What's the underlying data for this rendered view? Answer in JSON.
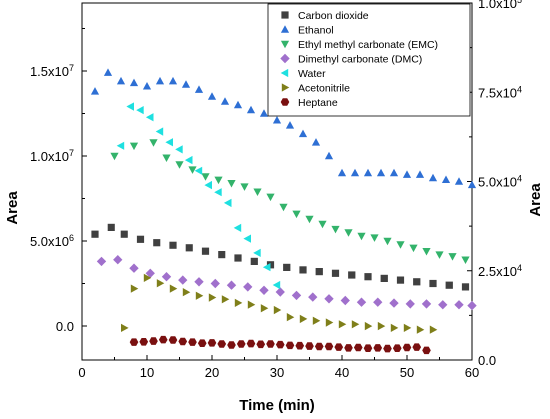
{
  "chart_data": {
    "type": "scatter",
    "xlabel": "Time (min)",
    "ylabel_left": "Area",
    "ylabel_right": "Area",
    "xlim": [
      0,
      60
    ],
    "xticks": [
      0,
      10,
      20,
      30,
      40,
      50,
      60
    ],
    "xtick_labels": [
      "0",
      "10",
      "20",
      "30",
      "40",
      "50",
      "60"
    ],
    "ylim_left": [
      -2000000,
      19000000
    ],
    "yticks_left": [
      0,
      5000000,
      10000000,
      15000000
    ],
    "ytick_labels_left": [
      "0.0",
      "5.0x10^6",
      "1.0x10^7",
      "1.5x10^7"
    ],
    "ylim_right": [
      0,
      100000
    ],
    "yticks_right": [
      0,
      25000,
      50000,
      75000,
      100000
    ],
    "ytick_labels_right": [
      "0.0",
      "2.5x10^4",
      "5.0x10^4",
      "7.5x10^4",
      "1.0x10^5"
    ],
    "grid": false,
    "legend_position": "top-right",
    "series": [
      {
        "name": "Carbon dioxide",
        "marker": "square",
        "color": "#404040",
        "axis": "left",
        "x": [
          2,
          4.5,
          6.5,
          9,
          11.5,
          14,
          16.5,
          19,
          21.5,
          24,
          26.5,
          29,
          31.5,
          34,
          36.5,
          39,
          41.5,
          44,
          46.5,
          49,
          51.5,
          54,
          56.5,
          59
        ],
        "y": [
          5400000,
          5800000,
          5400000,
          5100000,
          4900000,
          4750000,
          4600000,
          4400000,
          4200000,
          4000000,
          3800000,
          3600000,
          3450000,
          3300000,
          3200000,
          3100000,
          3000000,
          2900000,
          2800000,
          2700000,
          2600000,
          2500000,
          2400000,
          2300000
        ]
      },
      {
        "name": "Ethanol",
        "marker": "triangle-up",
        "color": "#2e6fd4",
        "axis": "left",
        "x": [
          2,
          4,
          6,
          8,
          10,
          12,
          14,
          16,
          18,
          20,
          22,
          24,
          26,
          28,
          30,
          32,
          34,
          36,
          38,
          40,
          42,
          44,
          46,
          48,
          50,
          52,
          54,
          56,
          58,
          60
        ],
        "y": [
          13800000,
          14900000,
          14400000,
          14300000,
          14100000,
          14400000,
          14400000,
          14200000,
          13900000,
          13500000,
          13200000,
          13000000,
          12700000,
          12500000,
          12100000,
          11800000,
          11300000,
          10800000,
          10000000,
          9000000,
          9000000,
          9000000,
          9000000,
          9000000,
          8900000,
          8900000,
          8700000,
          8600000,
          8500000,
          8300000
        ]
      },
      {
        "name": "Ethyl methyl carbonate (EMC)",
        "marker": "triangle-down",
        "color": "#33b36b",
        "axis": "left",
        "x": [
          5,
          8,
          11,
          13,
          15,
          17,
          19,
          21,
          23,
          25,
          27,
          29,
          31,
          33,
          35,
          37,
          39,
          41,
          43,
          45,
          47,
          49,
          51,
          53,
          55,
          57,
          59
        ],
        "y": [
          10000000,
          10600000,
          10800000,
          9900000,
          9500000,
          9200000,
          8800000,
          8600000,
          8400000,
          8200000,
          7900000,
          7600000,
          7000000,
          6600000,
          6300000,
          6000000,
          5700000,
          5500000,
          5300000,
          5200000,
          5000000,
          4800000,
          4600000,
          4400000,
          4200000,
          4100000,
          3900000
        ]
      },
      {
        "name": "Dimethyl carbonate (DMC)",
        "marker": "diamond",
        "color": "#a070cc",
        "axis": "left",
        "x": [
          3,
          5.5,
          8,
          10.5,
          13,
          15.5,
          18,
          20.5,
          23,
          25.5,
          28,
          30.5,
          33,
          35.5,
          38,
          40.5,
          43,
          45.5,
          48,
          50.5,
          53,
          55.5,
          58,
          60
        ],
        "y": [
          3800000,
          3900000,
          3400000,
          3100000,
          2900000,
          2700000,
          2600000,
          2500000,
          2400000,
          2300000,
          2100000,
          2000000,
          1800000,
          1700000,
          1600000,
          1500000,
          1400000,
          1400000,
          1350000,
          1300000,
          1300000,
          1250000,
          1250000,
          1200000
        ]
      },
      {
        "name": "Water",
        "marker": "triangle-left",
        "color": "#1ee0e0",
        "axis": "right",
        "x": [
          6,
          7.5,
          9,
          10.5,
          12,
          13.5,
          15,
          16.5,
          18,
          19.5,
          21,
          22.5,
          24,
          25.5,
          27,
          28.5,
          30
        ],
        "y": [
          60000,
          71000,
          70000,
          68000,
          64000,
          61000,
          59000,
          56000,
          53000,
          49000,
          47000,
          44000,
          37000,
          34000,
          30000,
          26000,
          21000
        ]
      },
      {
        "name": "Acetonitrile",
        "marker": "triangle-right",
        "color": "#7f7f1a",
        "axis": "right",
        "x": [
          6.5,
          8,
          10,
          12,
          14,
          16,
          18,
          20,
          22,
          24,
          26,
          28,
          30,
          32,
          34,
          36,
          38,
          40,
          42,
          44,
          46,
          48,
          50,
          52,
          54
        ],
        "y": [
          9000,
          20000,
          23000,
          21500,
          20000,
          19000,
          18000,
          17500,
          17000,
          16000,
          15500,
          14500,
          14000,
          12000,
          11500,
          11000,
          10500,
          10000,
          10000,
          9500,
          9500,
          9000,
          9000,
          8500,
          8500
        ]
      },
      {
        "name": "Heptane",
        "marker": "hexagon",
        "color": "#7a1010",
        "axis": "right",
        "x": [
          8,
          9.5,
          11,
          12.5,
          14,
          15.5,
          17,
          18.5,
          20,
          21.5,
          23,
          24.5,
          26,
          27.5,
          29,
          30.5,
          32,
          33.5,
          35,
          36.5,
          38,
          39.5,
          41,
          42.5,
          44,
          45.5,
          47,
          48.5,
          50,
          51.5,
          53
        ],
        "y": [
          5000,
          5100,
          5300,
          5700,
          5600,
          5200,
          5000,
          4700,
          4800,
          4500,
          4200,
          4500,
          4600,
          4400,
          4500,
          4300,
          4100,
          4000,
          3900,
          3800,
          3800,
          3600,
          3400,
          3500,
          3300,
          3400,
          3200,
          3300,
          3500,
          3600,
          2700
        ]
      }
    ]
  }
}
